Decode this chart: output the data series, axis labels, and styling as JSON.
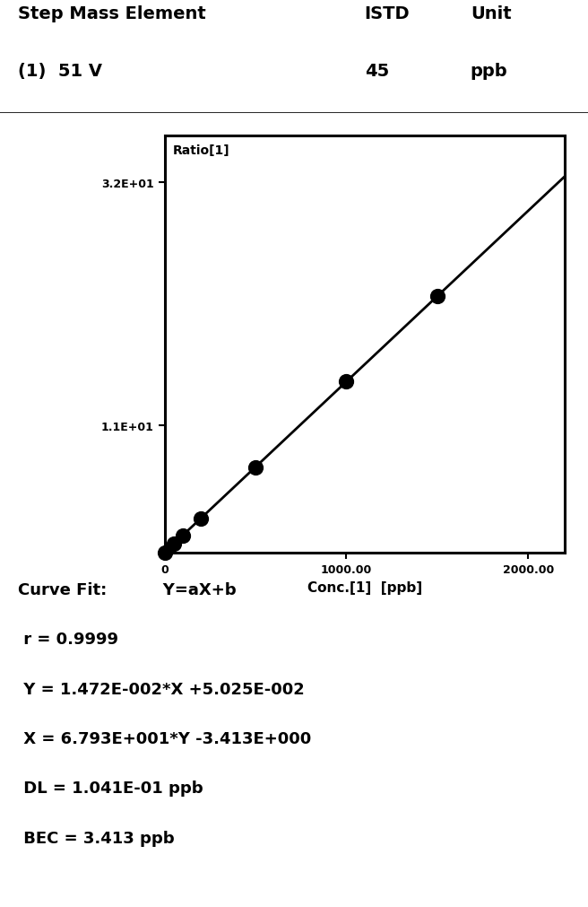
{
  "header_left_line1": "Step Mass Element",
  "header_left_line2": "(1)  51 V",
  "header_mid_line1": "ISTD",
  "header_mid_line2": "45",
  "header_right_line1": "Unit",
  "header_right_line2": "ppb",
  "plot_ylabel": "Ratio[1]",
  "ytick_labels": [
    "3.2E+01",
    "1.1E+01"
  ],
  "ytick_values": [
    32.0,
    11.0
  ],
  "xtick_labels": [
    "0",
    "1000.00",
    "2000.00"
  ],
  "xtick_values": [
    0,
    1000,
    2000
  ],
  "xlabel": "Conc.[1]  [ppb]",
  "data_x": [
    0,
    50,
    100,
    200,
    500,
    1000,
    1500
  ],
  "data_y": [
    0.05,
    0.79,
    1.52,
    3.0,
    7.41,
    14.77,
    22.13
  ],
  "line_color": "#000000",
  "marker_color": "#000000",
  "a": 0.01472,
  "b": 0.05025,
  "xmin": 0,
  "xmax": 2200,
  "ymin": 0,
  "ymax": 36,
  "curve_fit_lines": [
    "Curve Fit:          Y=aX+b",
    " r = 0.9999",
    " Y = 1.472E-002*X +5.025E-002",
    " X = 6.793E+001*Y -3.413E+000",
    " DL = 1.041E-01 ppb",
    " BEC = 3.413 ppb"
  ],
  "bg_color": "#ffffff",
  "text_color": "#000000",
  "header_line1_fontsize": 14,
  "header_line2_fontsize": 14,
  "curve_fit_fontsize": 13,
  "plot_title_fontsize": 10,
  "tick_label_fontsize": 9
}
